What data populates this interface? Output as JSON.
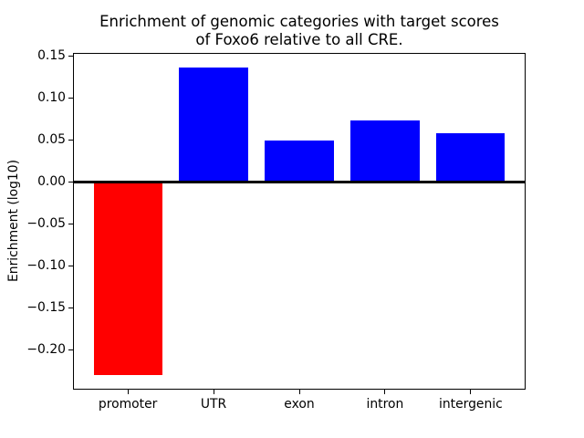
{
  "figure": {
    "title_line1": "Enrichment of genomic categories with target scores",
    "title_line2": "of Foxo6 relative to all CRE.",
    "ylabel": "Enrichment (log10)"
  },
  "chart_data": {
    "type": "bar",
    "title": "Enrichment of genomic categories with target scores\nof Foxo6 relative to all CRE.",
    "xlabel": "",
    "ylabel": "Enrichment (log10)",
    "categories": [
      "promoter",
      "UTR",
      "exon",
      "intron",
      "intergenic"
    ],
    "values": [
      -0.23,
      0.136,
      0.049,
      0.073,
      0.058
    ],
    "bar_colors": [
      "#ff0000",
      "#0000ff",
      "#0000ff",
      "#0000ff",
      "#0000ff"
    ],
    "positive_color": "#0000ff",
    "negative_color": "#ff0000",
    "axis_color": "#000000",
    "background_color": "#ffffff",
    "ylim": [
      -0.248,
      0.154
    ],
    "xlim": [
      -0.64,
      4.64
    ],
    "bar_width": 0.8,
    "yticks": [
      0.15,
      0.1,
      0.05,
      0.0,
      -0.05,
      -0.1,
      -0.15,
      -0.2
    ],
    "ytick_labels": [
      "0.15",
      "0.10",
      "0.05",
      "0.00",
      "−0.05",
      "−0.10",
      "−0.15",
      "−0.20"
    ],
    "zero_line": true,
    "grid": false,
    "legend_position": "none"
  }
}
